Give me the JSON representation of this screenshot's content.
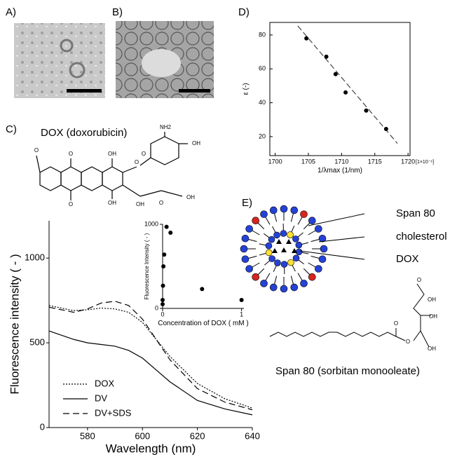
{
  "panels": [
    "A)",
    "B)",
    "C)",
    "D)",
    "E)"
  ],
  "diagram_c": {
    "name": "DOX (doxorubicin)",
    "atoms": [
      "O",
      "O",
      "O",
      "OH",
      "OH",
      "O",
      "OH",
      "O",
      "OH",
      "O",
      "NH2",
      "OH"
    ]
  },
  "diagram_e": {
    "label_span80": "Span 80",
    "label_cholesterol": "cholesterol",
    "label_dox": "DOX",
    "name": "Span 80 (sorbitan monooleate)",
    "atoms": [
      "O",
      "O",
      "O",
      "OH",
      "OH",
      "OH"
    ]
  },
  "chart_data": [
    {
      "type": "scatter",
      "x": [
        1704.7,
        1707.7,
        1709.1,
        1710.6,
        1713.7,
        1716.7
      ],
      "values": [
        78,
        67.2,
        56.9,
        46.1,
        35.4,
        24.5
      ],
      "fit_line": {
        "x": [
          1703.4,
          1718.4
        ],
        "values": [
          85.4,
          16
        ]
      },
      "xlim": [
        1699.2,
        1720.3
      ],
      "ylim": [
        8.8,
        87.4
      ],
      "xticks": [
        1700,
        1705,
        1710,
        1715,
        1720
      ],
      "yticks": [
        20,
        40,
        60,
        80
      ],
      "x_label": "1/λmax  (1/nm)",
      "y_label": "ε  (-)",
      "x_scale_note": "[1×10⁻⁶]",
      "color": "#000000"
    },
    {
      "type": "line",
      "x": [
        566,
        575,
        580,
        585,
        590,
        595,
        600,
        605,
        610,
        620,
        630,
        640
      ],
      "series": [
        {
          "name": "DOX",
          "dash": "2,2",
          "color": "#000000",
          "values": [
            720,
            690,
            695,
            705,
            700,
            680,
            620,
            520,
            420,
            260,
            170,
            115
          ]
        },
        {
          "name": "DV",
          "dash": "",
          "color": "#000000",
          "values": [
            570,
            520,
            500,
            490,
            480,
            455,
            410,
            340,
            270,
            160,
            110,
            75
          ]
        },
        {
          "name": "DV+SDS",
          "dash": "9,5",
          "color": "#000000",
          "values": [
            710,
            680,
            700,
            735,
            745,
            720,
            640,
            520,
            400,
            230,
            150,
            105
          ]
        }
      ],
      "xlim": [
        566,
        640
      ],
      "ylim": [
        0,
        1220
      ],
      "xticks": [
        580,
        600,
        620,
        640
      ],
      "yticks": [
        0,
        500,
        1000
      ],
      "x_label": "Wavelength (nm)",
      "y_label": "Fluorescence intensity ( - )"
    },
    {
      "type": "scatter",
      "x": [
        0.0,
        0.0,
        0.005,
        0.01,
        0.02,
        0.05,
        0.1,
        0.5,
        1.0
      ],
      "values": [
        50,
        100,
        270,
        500,
        640,
        970,
        900,
        230,
        100
      ],
      "xlim": [
        0,
        1.03
      ],
      "ylim": [
        0,
        1000
      ],
      "xticks": [
        0,
        1
      ],
      "yticks": [
        0,
        1000
      ],
      "x_label": "Concentration of DOX ( mM )",
      "y_label": "Fluorescence Intensity ( - )",
      "color": "#000000"
    }
  ]
}
